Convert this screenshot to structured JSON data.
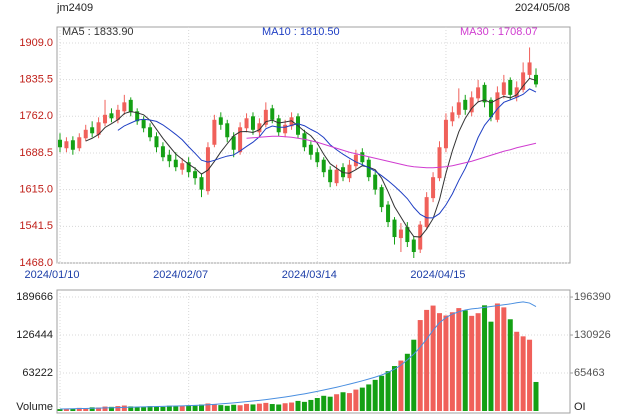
{
  "chart_data": [
    {
      "type": "candlestick",
      "title": "jm2409",
      "subtitle": "2024/05/08",
      "categories": [
        "2024/01/10",
        null,
        null,
        null,
        null,
        null,
        null,
        null,
        null,
        null,
        null,
        null,
        null,
        null,
        null,
        null,
        null,
        null,
        null,
        null,
        "2024/02/07",
        null,
        null,
        null,
        null,
        null,
        null,
        null,
        null,
        null,
        null,
        null,
        null,
        null,
        null,
        null,
        null,
        null,
        null,
        null,
        "2024/03/14",
        null,
        null,
        null,
        null,
        null,
        null,
        null,
        null,
        null,
        null,
        null,
        null,
        null,
        null,
        null,
        null,
        null,
        null,
        null,
        "2024/04/15",
        null,
        null,
        null,
        null,
        null,
        null,
        null,
        null,
        null,
        null,
        null,
        null,
        null,
        null
      ],
      "open": [
        1715,
        1698,
        1714,
        1698,
        1718,
        1740,
        1725,
        1748,
        1768,
        1755,
        1772,
        1795,
        1772,
        1755,
        1740,
        1722,
        1702,
        1685,
        1675,
        1655,
        1670,
        1652,
        1640,
        1612,
        1705,
        1760,
        1748,
        1722,
        1690,
        1738,
        1762,
        1730,
        1745,
        1778,
        1758,
        1728,
        1742,
        1762,
        1728,
        1705,
        1690,
        1675,
        1655,
        1628,
        1660,
        1638,
        1662,
        1690,
        1675,
        1645,
        1620,
        1585,
        1555,
        1518,
        1540,
        1515,
        1495,
        1540,
        1598,
        1638,
        1698,
        1752,
        1765,
        1795,
        1770,
        1798,
        1825,
        1795,
        1755,
        1805,
        1835,
        1800,
        1815,
        1845,
        1845
      ],
      "high": [
        1728,
        1720,
        1722,
        1728,
        1745,
        1752,
        1760,
        1795,
        1778,
        1785,
        1805,
        1800,
        1778,
        1762,
        1748,
        1730,
        1710,
        1695,
        1690,
        1678,
        1680,
        1660,
        1648,
        1710,
        1765,
        1770,
        1755,
        1730,
        1750,
        1768,
        1770,
        1758,
        1790,
        1785,
        1765,
        1755,
        1770,
        1768,
        1735,
        1712,
        1698,
        1680,
        1662,
        1665,
        1668,
        1675,
        1695,
        1698,
        1680,
        1650,
        1625,
        1592,
        1560,
        1548,
        1550,
        1522,
        1552,
        1610,
        1650,
        1712,
        1768,
        1782,
        1818,
        1805,
        1812,
        1835,
        1830,
        1800,
        1822,
        1845,
        1840,
        1832,
        1870,
        1900,
        1858
      ],
      "low": [
        1690,
        1690,
        1685,
        1692,
        1712,
        1720,
        1718,
        1742,
        1750,
        1748,
        1765,
        1762,
        1745,
        1730,
        1712,
        1690,
        1672,
        1660,
        1652,
        1645,
        1640,
        1625,
        1600,
        1605,
        1700,
        1735,
        1710,
        1680,
        1685,
        1730,
        1725,
        1722,
        1740,
        1748,
        1722,
        1720,
        1735,
        1718,
        1692,
        1675,
        1660,
        1640,
        1620,
        1622,
        1632,
        1630,
        1655,
        1662,
        1632,
        1605,
        1570,
        1540,
        1505,
        1490,
        1500,
        1478,
        1488,
        1535,
        1590,
        1632,
        1690,
        1742,
        1758,
        1765,
        1762,
        1790,
        1780,
        1752,
        1750,
        1798,
        1795,
        1792,
        1810,
        1838,
        1820
      ],
      "close": [
        1700,
        1712,
        1695,
        1720,
        1735,
        1728,
        1750,
        1765,
        1758,
        1775,
        1790,
        1770,
        1752,
        1738,
        1720,
        1700,
        1680,
        1672,
        1660,
        1668,
        1650,
        1638,
        1615,
        1700,
        1755,
        1745,
        1720,
        1695,
        1740,
        1758,
        1735,
        1748,
        1775,
        1755,
        1730,
        1745,
        1760,
        1725,
        1700,
        1685,
        1670,
        1650,
        1630,
        1655,
        1640,
        1665,
        1685,
        1670,
        1640,
        1615,
        1580,
        1550,
        1520,
        1535,
        1510,
        1490,
        1545,
        1600,
        1640,
        1700,
        1755,
        1770,
        1790,
        1775,
        1800,
        1820,
        1790,
        1760,
        1810,
        1830,
        1805,
        1820,
        1850,
        1870,
        1826
      ],
      "up_color": "#f0605a",
      "down_color": "#14a014",
      "series": [
        {
          "name": "MA5",
          "label": "MA5 : 1833.90",
          "color": "#333333",
          "values": [
            null,
            null,
            null,
            null,
            1712.4,
            1718,
            1725.6,
            1739.6,
            1747.2,
            1755.2,
            1767.6,
            1771.6,
            1769,
            1765,
            1754,
            1736,
            1718,
            1702,
            1686.4,
            1676,
            1666,
            1657.6,
            1646.2,
            1654.2,
            1671.6,
            1690.6,
            1707,
            1723,
            1731,
            1731.6,
            1729.6,
            1735.2,
            1751.2,
            1754.2,
            1748.6,
            1750.6,
            1753,
            1743,
            1732,
            1723,
            1708,
            1686,
            1667,
            1658,
            1649,
            1648,
            1655,
            1663,
            1660,
            1655,
            1638,
            1611,
            1581,
            1560,
            1539,
            1521,
            1520,
            1536,
            1557,
            1595,
            1648,
            1693,
            1731,
            1758,
            1778,
            1791,
            1795,
            1789,
            1796,
            1802,
            1799,
            1805,
            1823,
            1838,
            1833.9
          ]
        },
        {
          "name": "MA10",
          "label": "MA10 : 1810.50",
          "color": "#1f3fc4",
          "values": [
            null,
            null,
            null,
            null,
            null,
            null,
            null,
            null,
            null,
            1733.8,
            1742.8,
            1748.6,
            1754.3,
            1756.1,
            1754.6,
            1751.8,
            1744.8,
            1735.5,
            1725.7,
            1715,
            1701,
            1687.8,
            1674.1,
            1670.3,
            1673.8,
            1678.3,
            1682.3,
            1684.6,
            1692.6,
            1701.6,
            1710.1,
            1721.1,
            1737.1,
            1742.6,
            1740.1,
            1740.1,
            1744.1,
            1747.1,
            1743.1,
            1735.8,
            1729.3,
            1719.5,
            1705,
            1695,
            1686,
            1678,
            1670.5,
            1665,
            1659,
            1652,
            1643,
            1633,
            1622,
            1610,
            1597,
            1579.5,
            1565.5,
            1558.5,
            1558.5,
            1567,
            1584.5,
            1606.5,
            1633.5,
            1657.5,
            1686.5,
            1719.5,
            1744,
            1760,
            1777,
            1790,
            1795,
            1800,
            1806,
            1817,
            1810.5
          ]
        },
        {
          "name": "MA30",
          "label": "MA30 : 1708.07",
          "color": "#d03cd0",
          "values": [
            null,
            null,
            null,
            null,
            null,
            null,
            null,
            null,
            null,
            null,
            null,
            null,
            null,
            null,
            null,
            null,
            null,
            null,
            null,
            null,
            null,
            null,
            null,
            null,
            null,
            null,
            null,
            null,
            null,
            1718,
            1719,
            1720,
            1721,
            1722,
            1722,
            1721,
            1720,
            1718,
            1716,
            1713,
            1710,
            1706,
            1702,
            1698,
            1694,
            1690,
            1687,
            1684,
            1681,
            1678,
            1675,
            1672,
            1669,
            1666,
            1663,
            1661,
            1660,
            1659,
            1659,
            1660,
            1661,
            1663,
            1666,
            1669,
            1672,
            1676,
            1680,
            1684,
            1688,
            1692,
            1695,
            1699,
            1702,
            1705,
            1708.07
          ]
        }
      ],
      "ylim": [
        1468,
        1941
      ],
      "yticks": [
        {
          "value": 1909,
          "label": "1909.0"
        },
        1835.5,
        {
          "value": 1762,
          "label": "1762.0"
        },
        1688.5,
        {
          "value": 1615,
          "label": "1615.0"
        },
        1541.5,
        {
          "value": 1468,
          "label": "1468.0"
        }
      ],
      "grid": true
    },
    {
      "type": "bar",
      "series": [
        {
          "name": "Volume",
          "values": [
            3200,
            4100,
            3800,
            5200,
            4600,
            6100,
            5800,
            7400,
            6900,
            8200,
            9100,
            7600,
            6800,
            7200,
            8100,
            7500,
            6900,
            8800,
            7700,
            8400,
            9600,
            8900,
            10800,
            12500,
            11200,
            9800,
            8700,
            10400,
            9600,
            11800,
            10900,
            12200,
            13500,
            11600,
            10800,
            12900,
            14100,
            16800,
            15200,
            18400,
            21600,
            25300,
            23800,
            27900,
            31200,
            29800,
            35600,
            38900,
            44200,
            51800,
            58600,
            66300,
            74800,
            83900,
            95200,
            118600,
            151300,
            168200,
            175400,
            162800,
            158900,
            164300,
            171200,
            167500,
            158300,
            162700,
            175800,
            148600,
            178900,
            172400,
            152600,
            131800,
            124200,
            118600,
            48300
          ]
        },
        {
          "name": "OI",
          "axis": "y2",
          "color": "#4a8fe0",
          "values": [
            3500,
            3700,
            3900,
            4200,
            4400,
            4700,
            5000,
            5300,
            5600,
            5900,
            6200,
            6500,
            6800,
            7100,
            7400,
            7700,
            8000,
            8300,
            8600,
            8900,
            9300,
            9700,
            10200,
            10800,
            11500,
            12300,
            13100,
            14000,
            15000,
            16100,
            17200,
            18400,
            19700,
            21100,
            22600,
            24200,
            25900,
            27700,
            29600,
            31600,
            33800,
            36100,
            38500,
            41000,
            43600,
            46300,
            49100,
            52000,
            55100,
            58400,
            62000,
            66500,
            72000,
            79000,
            88000,
            98000,
            110000,
            124000,
            139000,
            152000,
            161000,
            167000,
            171000,
            174000,
            176000,
            177000,
            178500,
            180000,
            181500,
            183000,
            184500,
            186500,
            188000,
            186000,
            180000
          ]
        }
      ],
      "ylim": [
        0,
        201300
      ],
      "yticks": [
        189666,
        126444,
        63222
      ],
      "y2lim": [
        0,
        208500
      ],
      "y2ticks": [
        196390,
        130926,
        65463
      ],
      "grid": true
    }
  ]
}
